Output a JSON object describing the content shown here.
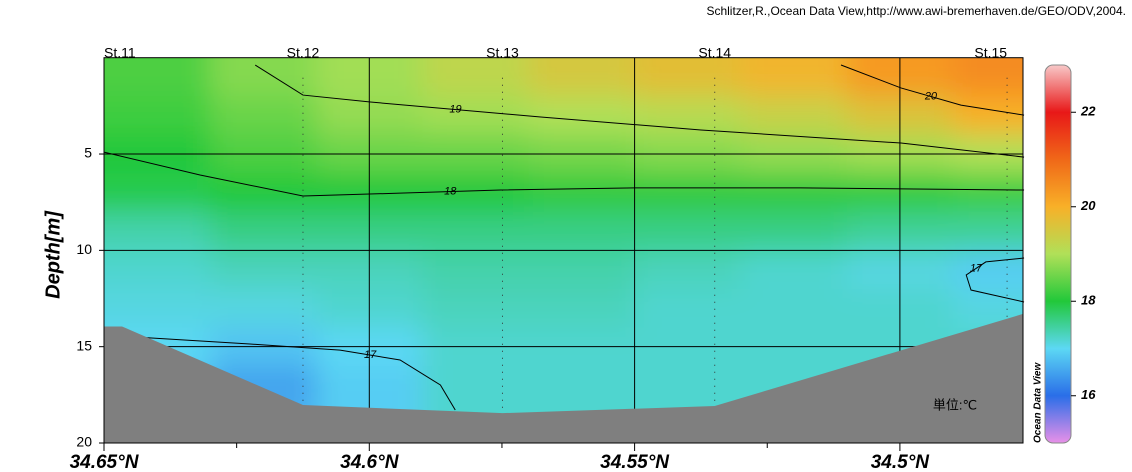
{
  "chart_data": {
    "type": "section",
    "credit": "Schlitzer,R.,Ocean Data View,http://www.awi-bremerhaven.de/GEO/ODV,2004.",
    "ylabel": "Depth[m]",
    "unit_note": "単位:℃",
    "brand": "Ocean Data View",
    "xlim": [
      34.65,
      34.4768
    ],
    "ylim": [
      0,
      20
    ],
    "xticks": [
      {
        "value": 34.65,
        "label": "34.65°N"
      },
      {
        "value": 34.6,
        "label": "34.6°N"
      },
      {
        "value": 34.55,
        "label": "34.55°N"
      },
      {
        "value": 34.5,
        "label": "34.5°N"
      }
    ],
    "xminorticks": [
      34.625,
      34.575,
      34.525
    ],
    "yticks": [
      5,
      10,
      15,
      20
    ],
    "grid": true,
    "stations": {
      "names": [
        "St.11",
        "St.12",
        "St.13",
        "St.14",
        "St.15"
      ],
      "x": [
        34.65,
        34.6125,
        34.5749,
        34.5349,
        34.4798
      ]
    },
    "clim": [
      15,
      23
    ],
    "cticks": [
      16,
      18,
      20,
      22
    ],
    "colormap": [
      "#e890e8",
      "#2a6ee8",
      "#5cd8f4",
      "#22c83a",
      "#b0e058",
      "#f8b028",
      "#f06818",
      "#e81818",
      "#f8c8c8"
    ],
    "field": {
      "x": [
        34.64,
        34.62,
        34.6,
        34.58,
        34.56,
        34.54,
        34.52,
        34.5,
        34.48
      ],
      "depth": [
        1,
        3,
        5,
        7,
        9,
        11,
        13,
        15,
        17,
        19
      ],
      "values": [
        [
          18.3,
          18.7,
          18.9,
          19.2,
          19.5,
          19.7,
          19.9,
          20.3,
          20.5
        ],
        [
          18.2,
          18.5,
          18.8,
          18.9,
          19.0,
          19.1,
          19.3,
          19.6,
          20.0
        ],
        [
          18.0,
          18.3,
          18.5,
          18.5,
          18.6,
          18.7,
          18.8,
          18.9,
          19.0
        ],
        [
          17.9,
          18.0,
          18.0,
          18.0,
          18.1,
          18.1,
          18.1,
          18.1,
          18.2
        ],
        [
          17.4,
          17.6,
          17.6,
          17.6,
          17.6,
          17.6,
          17.6,
          17.5,
          17.5
        ],
        [
          17.2,
          17.3,
          17.3,
          17.4,
          17.4,
          17.3,
          17.2,
          17.1,
          16.9
        ],
        [
          17.1,
          17.1,
          17.2,
          17.3,
          17.3,
          17.2,
          17.2,
          17.2,
          17.1
        ],
        [
          17.0,
          16.8,
          17.0,
          17.2,
          17.2,
          17.2,
          17.2,
          17.2,
          17.2
        ],
        [
          16.9,
          16.5,
          16.9,
          17.2,
          17.2,
          17.2,
          17.2,
          17.2,
          17.2
        ],
        [
          16.9,
          16.6,
          16.9,
          17.2,
          17.2,
          17.2,
          17.2,
          17.2,
          17.2
        ]
      ]
    },
    "bottom": {
      "x": [
        34.65,
        34.6466,
        34.6125,
        34.5749,
        34.5349,
        34.4768
      ],
      "depth": [
        13.95,
        13.95,
        18.03,
        18.45,
        18.08,
        13.3
      ],
      "color": "#7f7f7f"
    },
    "contours": [
      {
        "label": "20",
        "x": [
          34.5111,
          34.4998,
          34.4885,
          34.4766
        ],
        "depth": [
          0.38,
          1.57,
          2.46,
          2.98
        ]
      },
      {
        "label": "19",
        "x": [
          34.6215,
          34.6125,
          34.5998,
          34.5677,
          34.5375,
          34.4998,
          34.4766
        ],
        "depth": [
          0.38,
          1.94,
          2.3,
          3.08,
          3.75,
          4.43,
          5.16
        ]
      },
      {
        "label": "18",
        "x": [
          34.65,
          34.6319,
          34.6125,
          34.5942,
          34.5753,
          34.55,
          34.5187,
          34.4766
        ],
        "depth": [
          4.9,
          6.09,
          7.18,
          7.03,
          6.87,
          6.76,
          6.76,
          6.87
        ]
      },
      {
        "label": "17",
        "x": [
          34.647,
          34.6225,
          34.6055,
          34.5942,
          34.5866,
          34.5838
        ],
        "depth": [
          14.45,
          14.86,
          15.18,
          15.69,
          16.99,
          18.29
        ]
      },
      {
        "label": "17",
        "x": [
          34.4766,
          34.4838,
          34.4875,
          34.4866,
          34.4766
        ],
        "depth": [
          10.4,
          10.6,
          11.28,
          12.06,
          12.68
        ]
      }
    ]
  }
}
